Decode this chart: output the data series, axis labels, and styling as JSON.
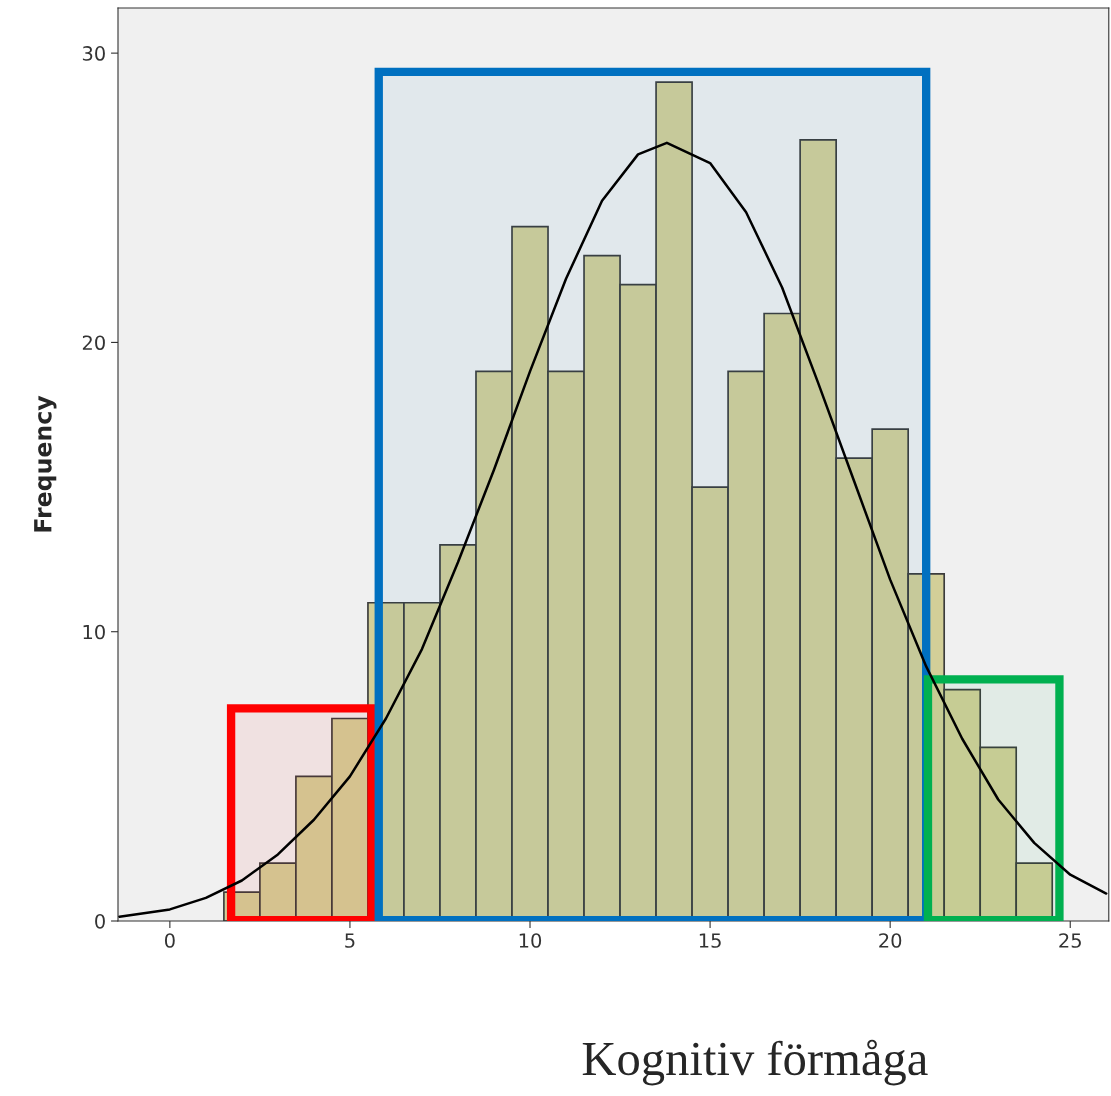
{
  "chart_data": {
    "type": "histogram",
    "xlabel": "Kognitiv förmåga",
    "ylabel": "Frequency",
    "bins": [
      1.5,
      2.5,
      3.5,
      4.5,
      5.5,
      6.5,
      7.5,
      8.5,
      9.5,
      10.5,
      11.5,
      12.5,
      13.5,
      14.5,
      15.5,
      16.5,
      17.5,
      18.5,
      19.5,
      20.5,
      21.5,
      22.5,
      23.5,
      24.5
    ],
    "values": [
      1,
      2,
      5,
      7,
      11,
      11,
      13,
      19,
      24,
      19,
      23,
      22,
      29,
      15,
      19,
      21,
      27,
      16,
      17,
      12,
      8,
      6,
      2
    ],
    "color": "#d3cf98",
    "series": [
      {
        "type": "line",
        "color": "#000000",
        "x": [
          -1.4,
          0,
          1,
          2,
          3,
          4,
          5,
          6,
          7,
          8,
          9,
          10,
          11,
          12,
          13,
          13.8,
          15,
          16,
          17,
          18,
          19,
          20,
          21,
          22,
          23,
          24,
          25,
          26
        ],
        "values": [
          0.15,
          0.4,
          0.8,
          1.4,
          2.3,
          3.5,
          5.0,
          7.0,
          9.4,
          12.4,
          15.6,
          19.0,
          22.2,
          24.9,
          26.5,
          26.9,
          26.2,
          24.5,
          21.9,
          18.6,
          15.2,
          11.8,
          8.8,
          6.3,
          4.2,
          2.7,
          1.6,
          0.95
        ]
      }
    ],
    "bands": [
      {
        "axis": "x",
        "from": 1.7,
        "to": 5.6,
        "color": "#ff0000"
      },
      {
        "axis": "x",
        "from": 5.8,
        "to": 21.0,
        "color": "#0070c0"
      },
      {
        "axis": "x",
        "from": 21.05,
        "to": 24.7,
        "color": "#00b050"
      }
    ],
    "xlim": [
      -1.44,
      26.07
    ],
    "ylim": [
      0,
      31.56
    ],
    "xticks": [
      0,
      5,
      10,
      15,
      20,
      25
    ],
    "yticks": [
      0,
      10,
      20,
      30
    ],
    "grid": false
  }
}
